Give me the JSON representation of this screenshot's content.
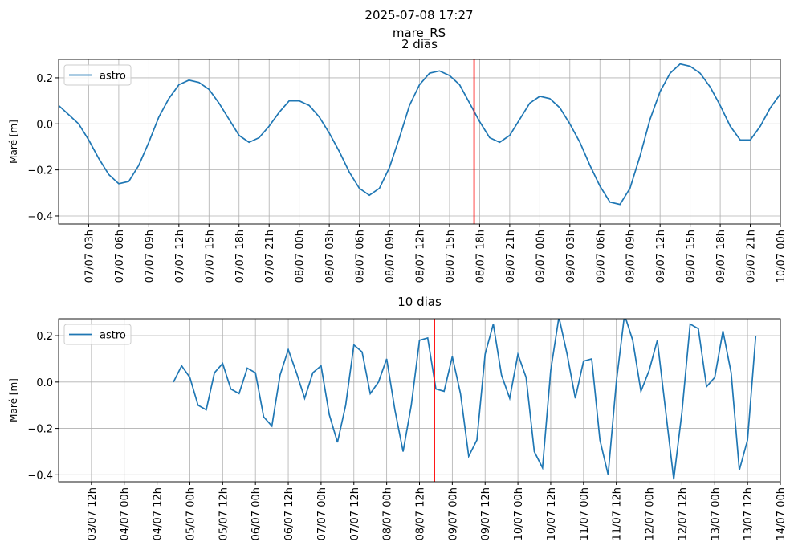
{
  "title": "2025-07-08 17:27",
  "subtitle": "mare_RS",
  "chart_data": [
    {
      "type": "line",
      "title": "2 dias",
      "ylabel": "Maré [m]",
      "legend": "upper left",
      "grid": true,
      "x": [
        "07/07 00h",
        "07/07 01h",
        "07/07 02h",
        "07/07 03h",
        "07/07 04h",
        "07/07 05h",
        "07/07 06h",
        "07/07 07h",
        "07/07 08h",
        "07/07 09h",
        "07/07 10h",
        "07/07 11h",
        "07/07 12h",
        "07/07 13h",
        "07/07 14h",
        "07/07 15h",
        "07/07 16h",
        "07/07 17h",
        "07/07 18h",
        "07/07 19h",
        "07/07 20h",
        "07/07 21h",
        "07/07 22h",
        "07/07 23h",
        "08/07 00h",
        "08/07 01h",
        "08/07 02h",
        "08/07 03h",
        "08/07 04h",
        "08/07 05h",
        "08/07 06h",
        "08/07 07h",
        "08/07 08h",
        "08/07 09h",
        "08/07 10h",
        "08/07 11h",
        "08/07 12h",
        "08/07 13h",
        "08/07 14h",
        "08/07 15h",
        "08/07 16h",
        "08/07 17h",
        "08/07 18h",
        "08/07 19h",
        "08/07 20h",
        "08/07 21h",
        "08/07 22h",
        "08/07 23h",
        "09/07 00h",
        "09/07 01h",
        "09/07 02h",
        "09/07 03h",
        "09/07 04h",
        "09/07 05h",
        "09/07 06h",
        "09/07 07h",
        "09/07 08h",
        "09/07 09h",
        "09/07 10h",
        "09/07 11h",
        "09/07 12h",
        "09/07 13h",
        "09/07 14h",
        "09/07 15h",
        "09/07 16h",
        "09/07 17h",
        "09/07 18h",
        "09/07 19h",
        "09/07 20h",
        "09/07 21h",
        "09/07 22h",
        "09/07 23h",
        "10/07 00h"
      ],
      "series": [
        {
          "name": "astro",
          "color": "#1f77b4",
          "values": [
            0.08,
            0.04,
            0.0,
            -0.07,
            -0.15,
            -0.22,
            -0.26,
            -0.25,
            -0.18,
            -0.08,
            0.03,
            0.11,
            0.17,
            0.19,
            0.18,
            0.15,
            0.09,
            0.02,
            -0.05,
            -0.08,
            -0.06,
            -0.01,
            0.05,
            0.1,
            0.1,
            0.08,
            0.03,
            -0.04,
            -0.12,
            -0.21,
            -0.28,
            -0.31,
            -0.28,
            -0.19,
            -0.06,
            0.08,
            0.17,
            0.22,
            0.23,
            0.21,
            0.17,
            0.09,
            0.01,
            -0.06,
            -0.08,
            -0.05,
            0.02,
            0.09,
            0.12,
            0.11,
            0.07,
            0.0,
            -0.08,
            -0.18,
            -0.27,
            -0.34,
            -0.35,
            -0.28,
            -0.14,
            0.02,
            0.14,
            0.22,
            0.26,
            0.25,
            0.22,
            0.16,
            0.08,
            -0.01,
            -0.07,
            -0.07,
            -0.01,
            0.07,
            0.13
          ]
        }
      ],
      "marker": {
        "x": "08/07 17h27",
        "color": "#ff0000"
      },
      "xlim": [
        "07/07 00h",
        "10/07 00h"
      ],
      "xticks": [
        "07/07 03h",
        "07/07 06h",
        "07/07 09h",
        "07/07 12h",
        "07/07 15h",
        "07/07 18h",
        "07/07 21h",
        "08/07 00h",
        "08/07 03h",
        "08/07 06h",
        "08/07 09h",
        "08/07 12h",
        "08/07 15h",
        "08/07 18h",
        "08/07 21h",
        "09/07 00h",
        "09/07 03h",
        "09/07 06h",
        "09/07 09h",
        "09/07 12h",
        "09/07 15h",
        "09/07 18h",
        "09/07 21h",
        "10/07 00h"
      ],
      "ylim": [
        -0.435,
        0.28
      ],
      "yticks": [
        {
          "value": -0.4,
          "label": "−0.4"
        },
        {
          "value": -0.2,
          "label": "−0.2"
        },
        {
          "value": 0,
          "label": "0.0"
        },
        0.2
      ]
    },
    {
      "type": "line",
      "title": "10 dias",
      "ylabel": "Maré [m]",
      "legend": "upper left",
      "grid": true,
      "x": [
        "04/07 18h",
        "04/07 21h",
        "05/07 00h",
        "05/07 03h",
        "05/07 06h",
        "05/07 09h",
        "05/07 12h",
        "05/07 15h",
        "05/07 18h",
        "05/07 21h",
        "06/07 00h",
        "06/07 03h",
        "06/07 06h",
        "06/07 09h",
        "06/07 12h",
        "06/07 15h",
        "06/07 18h",
        "06/07 21h",
        "07/07 00h",
        "07/07 03h",
        "07/07 06h",
        "07/07 09h",
        "07/07 12h",
        "07/07 15h",
        "07/07 18h",
        "07/07 21h",
        "08/07 00h",
        "08/07 03h",
        "08/07 06h",
        "08/07 09h",
        "08/07 12h",
        "08/07 15h",
        "08/07 18h",
        "08/07 21h",
        "09/07 00h",
        "09/07 03h",
        "09/07 06h",
        "09/07 09h",
        "09/07 12h",
        "09/07 15h",
        "09/07 18h",
        "09/07 21h",
        "10/07 00h",
        "10/07 03h",
        "10/07 06h",
        "10/07 09h",
        "10/07 12h",
        "10/07 15h",
        "10/07 18h",
        "10/07 21h",
        "11/07 00h",
        "11/07 03h",
        "11/07 06h",
        "11/07 09h",
        "11/07 12h",
        "11/07 15h",
        "11/07 18h",
        "11/07 21h",
        "12/07 00h",
        "12/07 03h",
        "12/07 06h",
        "12/07 09h",
        "12/07 12h",
        "12/07 15h",
        "12/07 18h",
        "12/07 21h",
        "13/07 00h",
        "13/07 03h",
        "13/07 06h",
        "13/07 09h",
        "13/07 12h",
        "13/07 15h"
      ],
      "series": [
        {
          "name": "astro",
          "color": "#1f77b4",
          "values": [
            0.0,
            0.07,
            0.02,
            -0.1,
            -0.12,
            0.04,
            0.08,
            -0.03,
            -0.05,
            0.06,
            0.04,
            -0.15,
            -0.19,
            0.03,
            0.14,
            0.04,
            -0.07,
            0.04,
            0.07,
            -0.14,
            -0.26,
            -0.1,
            0.16,
            0.13,
            -0.05,
            0.0,
            0.1,
            -0.12,
            -0.3,
            -0.1,
            0.18,
            0.19,
            -0.03,
            -0.04,
            0.11,
            -0.05,
            -0.32,
            -0.25,
            0.12,
            0.25,
            0.03,
            -0.07,
            0.12,
            0.02,
            -0.3,
            -0.37,
            0.05,
            0.28,
            0.12,
            -0.07,
            0.09,
            0.1,
            -0.25,
            -0.4,
            0.0,
            0.29,
            0.18,
            -0.04,
            0.05,
            0.18,
            -0.12,
            -0.42,
            -0.13,
            0.25,
            0.23,
            -0.02,
            0.02,
            0.22,
            0.04,
            -0.38,
            -0.25,
            0.2
          ]
        }
      ],
      "marker": {
        "x": "08/07 17h27",
        "color": "#ff0000"
      },
      "xlim": [
        "03/07 00h",
        "14/07 00h"
      ],
      "xticks": [
        "03/07 12h",
        "04/07 00h",
        "04/07 12h",
        "05/07 00h",
        "05/07 12h",
        "06/07 00h",
        "06/07 12h",
        "07/07 00h",
        "07/07 12h",
        "08/07 00h",
        "08/07 12h",
        "09/07 00h",
        "09/07 12h",
        "10/07 00h",
        "10/07 12h",
        "11/07 00h",
        "11/07 12h",
        "12/07 00h",
        "12/07 12h",
        "13/07 00h",
        "13/07 12h",
        "14/07 00h"
      ],
      "ylim": [
        -0.43,
        0.273
      ],
      "yticks": [
        {
          "value": -0.4,
          "label": "−0.4"
        },
        {
          "value": -0.2,
          "label": "−0.2"
        },
        {
          "value": 0,
          "label": "0.0"
        },
        0.2
      ]
    }
  ]
}
